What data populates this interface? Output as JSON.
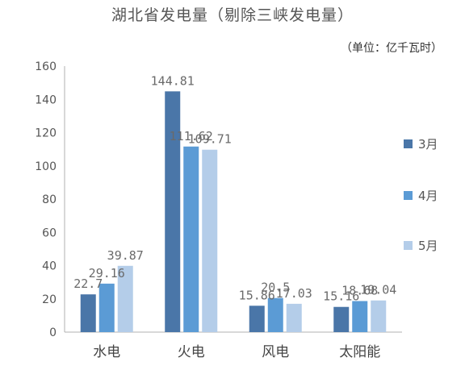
{
  "chart_data": {
    "type": "bar",
    "title": "湖北省发电量（剔除三峡发电量）",
    "unit_label": "（单位：亿千瓦时）",
    "categories": [
      "水电",
      "火电",
      "风电",
      "太阳能"
    ],
    "series": [
      {
        "name": "3月",
        "values": [
          22.7,
          144.81,
          15.86,
          15.16
        ],
        "labels": [
          "22.7",
          "144.81",
          "15.86",
          "15.16"
        ],
        "color": "#4a76a8"
      },
      {
        "name": "4月",
        "values": [
          29.16,
          111.62,
          20.5,
          18.68
        ],
        "labels": [
          "29.16",
          "111.62",
          "20.5",
          "18.68"
        ],
        "color": "#5b9bd5"
      },
      {
        "name": "5月",
        "values": [
          39.87,
          109.71,
          17.03,
          19.04
        ],
        "labels": [
          "39.87",
          "109.71",
          "17.03",
          "19.04"
        ],
        "color": "#b4cde9"
      }
    ],
    "ylim": [
      0,
      160
    ],
    "yticks": [
      0,
      20,
      40,
      60,
      80,
      100,
      120,
      140,
      160
    ],
    "grid": false,
    "legend_position": "right"
  }
}
